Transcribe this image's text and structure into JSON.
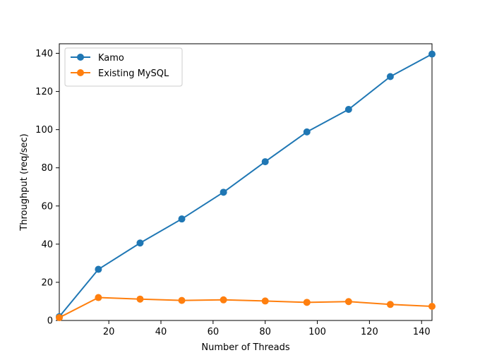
{
  "chart_data": {
    "type": "line",
    "title": "",
    "xlabel": "Number of Threads",
    "ylabel": "Throughput (req/sec)",
    "xlim": [
      1,
      144
    ],
    "ylim": [
      0,
      145
    ],
    "xticks": [
      20,
      40,
      60,
      80,
      100,
      120,
      140
    ],
    "yticks": [
      0,
      20,
      40,
      60,
      80,
      100,
      120,
      140
    ],
    "legend_position": "top-left",
    "x": [
      1,
      16,
      32,
      48,
      64,
      80,
      96,
      112,
      128,
      144
    ],
    "series": [
      {
        "name": "Kamo",
        "color": "#1f77b4",
        "values": [
          2,
          26.8,
          40.6,
          53.2,
          67.2,
          83.2,
          98.8,
          110.6,
          127.8,
          139.6
        ]
      },
      {
        "name": "Existing MySQL",
        "color": "#ff7f0e",
        "values": [
          1.5,
          12.0,
          11.2,
          10.5,
          10.8,
          10.2,
          9.5,
          9.9,
          8.4,
          7.4
        ]
      }
    ]
  }
}
